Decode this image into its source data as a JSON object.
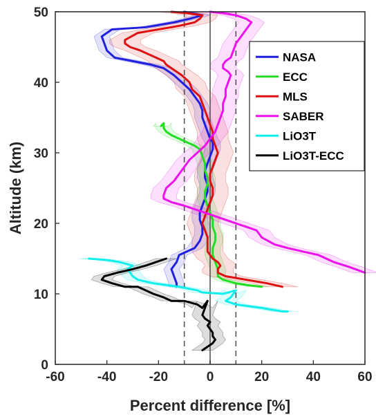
{
  "chart_data": {
    "type": "line",
    "xlabel": "Percent difference [%]",
    "ylabel": "Altitude (km)",
    "xlim": [
      -60,
      60
    ],
    "ylim": [
      0,
      50
    ],
    "xticks": [
      -60,
      -40,
      -20,
      0,
      20,
      40,
      60
    ],
    "yticks": [
      0,
      10,
      20,
      30,
      40,
      50
    ],
    "grid": false,
    "legend_position": "top-right",
    "reference_lines": [
      {
        "x": -10,
        "style": "dashed",
        "color": "#555555"
      },
      {
        "x": 0,
        "style": "solid",
        "color": "#555555"
      },
      {
        "x": 10,
        "style": "dashed",
        "color": "#555555"
      }
    ],
    "series": [
      {
        "name": "NASA",
        "color": "#1f1fdd",
        "points": [
          [
            -10,
            50
          ],
          [
            -3,
            49.5
          ],
          [
            -8,
            49
          ],
          [
            -14,
            48.5
          ],
          [
            -25,
            47.8
          ],
          [
            -38,
            47.5
          ],
          [
            -42,
            46.5
          ],
          [
            -41,
            45.5
          ],
          [
            -40,
            44.5
          ],
          [
            -37,
            43.5
          ],
          [
            -30,
            43
          ],
          [
            -23,
            42.5
          ],
          [
            -18,
            42
          ],
          [
            -14,
            41
          ],
          [
            -11,
            40
          ],
          [
            -8,
            39
          ],
          [
            -6,
            38
          ],
          [
            -4,
            37
          ],
          [
            -3,
            36
          ],
          [
            -3,
            35
          ],
          [
            -2,
            34
          ],
          [
            -1,
            33
          ],
          [
            0,
            32
          ],
          [
            1,
            31.5
          ],
          [
            1,
            30.5
          ],
          [
            0,
            29.5
          ],
          [
            -1,
            28.5
          ],
          [
            -2,
            27.5
          ],
          [
            -2,
            26.5
          ],
          [
            -1,
            25.5
          ],
          [
            -1,
            24.5
          ],
          [
            -2,
            23.5
          ],
          [
            -3,
            22.5
          ],
          [
            -4,
            21.5
          ],
          [
            -4,
            20.5
          ],
          [
            -3,
            19.5
          ],
          [
            -3,
            18.5
          ],
          [
            -4,
            17.5
          ],
          [
            -6,
            16.5
          ],
          [
            -9,
            16
          ],
          [
            -12,
            15.5
          ],
          [
            -13,
            14.5
          ],
          [
            -15,
            13.5
          ],
          [
            -14,
            12.5
          ],
          [
            -13,
            11.5
          ],
          [
            -13,
            11
          ]
        ],
        "band": 3
      },
      {
        "name": "ECC",
        "color": "#22dd22",
        "points": [
          [
            -19,
            33.8
          ],
          [
            -18,
            34.2
          ],
          [
            -18,
            33.5
          ],
          [
            -17,
            33
          ],
          [
            -15,
            32.5
          ],
          [
            -12,
            32
          ],
          [
            -9,
            31.5
          ],
          [
            -6,
            31
          ],
          [
            -4,
            30.5
          ],
          [
            -3,
            29.5
          ],
          [
            -2,
            28.5
          ],
          [
            -2,
            27.5
          ],
          [
            -1,
            26.5
          ],
          [
            -1,
            25.5
          ],
          [
            -2,
            24.5
          ],
          [
            -2,
            23.5
          ],
          [
            -1,
            22.5
          ],
          [
            0,
            21.5
          ],
          [
            1,
            20.5
          ],
          [
            1,
            19.5
          ],
          [
            2,
            18.5
          ],
          [
            2,
            17.5
          ],
          [
            1,
            16.5
          ],
          [
            1,
            15.5
          ],
          [
            2,
            14.5
          ],
          [
            3,
            13.5
          ],
          [
            3,
            12.5
          ],
          [
            5,
            12
          ],
          [
            10,
            11.5
          ],
          [
            15,
            11.2
          ],
          [
            20,
            11
          ]
        ],
        "band": 3
      },
      {
        "name": "MLS",
        "color": "#dd1111",
        "points": [
          [
            -15,
            50
          ],
          [
            -9,
            49.8
          ],
          [
            -3,
            49.5
          ],
          [
            -4,
            49
          ],
          [
            -6,
            48.5
          ],
          [
            -12,
            48
          ],
          [
            -20,
            47.5
          ],
          [
            -28,
            47
          ],
          [
            -33,
            46
          ],
          [
            -33,
            45.5
          ],
          [
            -31,
            45
          ],
          [
            -27,
            44.5
          ],
          [
            -24,
            44
          ],
          [
            -21,
            43.5
          ],
          [
            -18,
            43
          ],
          [
            -17,
            42.5
          ],
          [
            -15,
            42
          ],
          [
            -11,
            41
          ],
          [
            -8,
            40
          ],
          [
            -7,
            39
          ],
          [
            -4,
            38
          ],
          [
            -3,
            37
          ],
          [
            -2,
            36
          ],
          [
            -1,
            35
          ],
          [
            0,
            34
          ],
          [
            1,
            33
          ],
          [
            1,
            32
          ],
          [
            2,
            31
          ],
          [
            3,
            30
          ],
          [
            2,
            29
          ],
          [
            1,
            28
          ],
          [
            0,
            27
          ],
          [
            0,
            26
          ],
          [
            1,
            25
          ],
          [
            1,
            24
          ],
          [
            0,
            23
          ],
          [
            -1,
            22
          ],
          [
            -2,
            21
          ],
          [
            -3,
            20
          ],
          [
            -2,
            19
          ],
          [
            -1,
            18
          ],
          [
            -1,
            17
          ],
          [
            -1,
            16
          ],
          [
            0,
            15.5
          ],
          [
            1,
            15
          ],
          [
            3,
            14.5
          ],
          [
            4,
            14
          ],
          [
            3,
            13.5
          ],
          [
            3,
            13
          ],
          [
            6,
            12.5
          ],
          [
            14,
            12
          ],
          [
            22,
            11.5
          ],
          [
            28,
            11
          ]
        ],
        "band": 6
      },
      {
        "name": "SABER",
        "color": "#ee11ee",
        "points": [
          [
            0,
            50
          ],
          [
            5,
            49.8
          ],
          [
            10,
            49.5
          ],
          [
            14,
            49
          ],
          [
            16,
            48.5
          ],
          [
            14,
            47.5
          ],
          [
            12,
            46.5
          ],
          [
            10,
            45.5
          ],
          [
            9,
            44.5
          ],
          [
            8,
            43.5
          ],
          [
            6,
            43
          ],
          [
            5,
            42.5
          ],
          [
            5,
            42
          ],
          [
            7,
            41.5
          ],
          [
            8,
            41
          ],
          [
            7,
            40
          ],
          [
            6,
            39
          ],
          [
            6,
            38
          ],
          [
            5,
            37
          ],
          [
            5,
            36
          ],
          [
            4,
            35
          ],
          [
            3,
            34
          ],
          [
            2,
            33
          ],
          [
            0,
            32
          ],
          [
            -2,
            31
          ],
          [
            -5,
            30
          ],
          [
            -8,
            29
          ],
          [
            -10,
            28
          ],
          [
            -12,
            27
          ],
          [
            -14,
            26
          ],
          [
            -17,
            25
          ],
          [
            -18,
            24
          ],
          [
            -18,
            23.5
          ],
          [
            -15,
            23
          ],
          [
            -10,
            22.5
          ],
          [
            -6,
            22
          ],
          [
            -2,
            21.5
          ],
          [
            2,
            21
          ],
          [
            6,
            20.5
          ],
          [
            10,
            20
          ],
          [
            14,
            19.5
          ],
          [
            18,
            19
          ],
          [
            20,
            18
          ],
          [
            25,
            17
          ],
          [
            30,
            16.5
          ],
          [
            36,
            16
          ],
          [
            42,
            15.5
          ],
          [
            48,
            14.5
          ],
          [
            54,
            13.8
          ],
          [
            60,
            13
          ]
        ],
        "band": 5
      },
      {
        "name": "LiO3T",
        "color": "#11eeee",
        "points": [
          [
            -47,
            15
          ],
          [
            -40,
            14.8
          ],
          [
            -35,
            14.5
          ],
          [
            -30,
            14
          ],
          [
            -32,
            13.5
          ],
          [
            -31,
            13
          ],
          [
            -30,
            12.5
          ],
          [
            -28,
            12
          ],
          [
            -22,
            11.5
          ],
          [
            -12,
            11
          ],
          [
            -5,
            10.5
          ],
          [
            -3,
            10.2
          ],
          [
            5,
            10
          ],
          [
            10,
            10.5
          ],
          [
            8,
            9.5
          ],
          [
            6,
            9
          ],
          [
            10,
            8.5
          ],
          [
            20,
            8
          ],
          [
            28,
            7.5
          ],
          [
            30,
            7.5
          ]
        ],
        "band": 4
      },
      {
        "name": "LiO3T-ECC",
        "color": "#000000",
        "points": [
          [
            -17,
            15
          ],
          [
            -21,
            14.5
          ],
          [
            -25,
            14
          ],
          [
            -30,
            13.5
          ],
          [
            -36,
            13
          ],
          [
            -41,
            12.5
          ],
          [
            -42,
            12
          ],
          [
            -38,
            11.5
          ],
          [
            -33,
            11
          ],
          [
            -28,
            11
          ],
          [
            -25,
            10.5
          ],
          [
            -22,
            10
          ],
          [
            -18,
            9.5
          ],
          [
            -15,
            9
          ],
          [
            -10,
            9
          ],
          [
            -5,
            8.5
          ],
          [
            -3,
            8
          ],
          [
            -2,
            8.5
          ],
          [
            -1,
            9
          ],
          [
            -2,
            8
          ],
          [
            -3,
            7
          ],
          [
            -2,
            6.5
          ],
          [
            0,
            6
          ],
          [
            -1,
            5.5
          ],
          [
            0,
            5
          ],
          [
            1,
            4.5
          ],
          [
            1,
            4
          ],
          [
            2,
            3.5
          ],
          [
            1,
            3
          ],
          [
            -1,
            2.5
          ],
          [
            -3,
            2
          ]
        ],
        "band": 4
      }
    ]
  }
}
